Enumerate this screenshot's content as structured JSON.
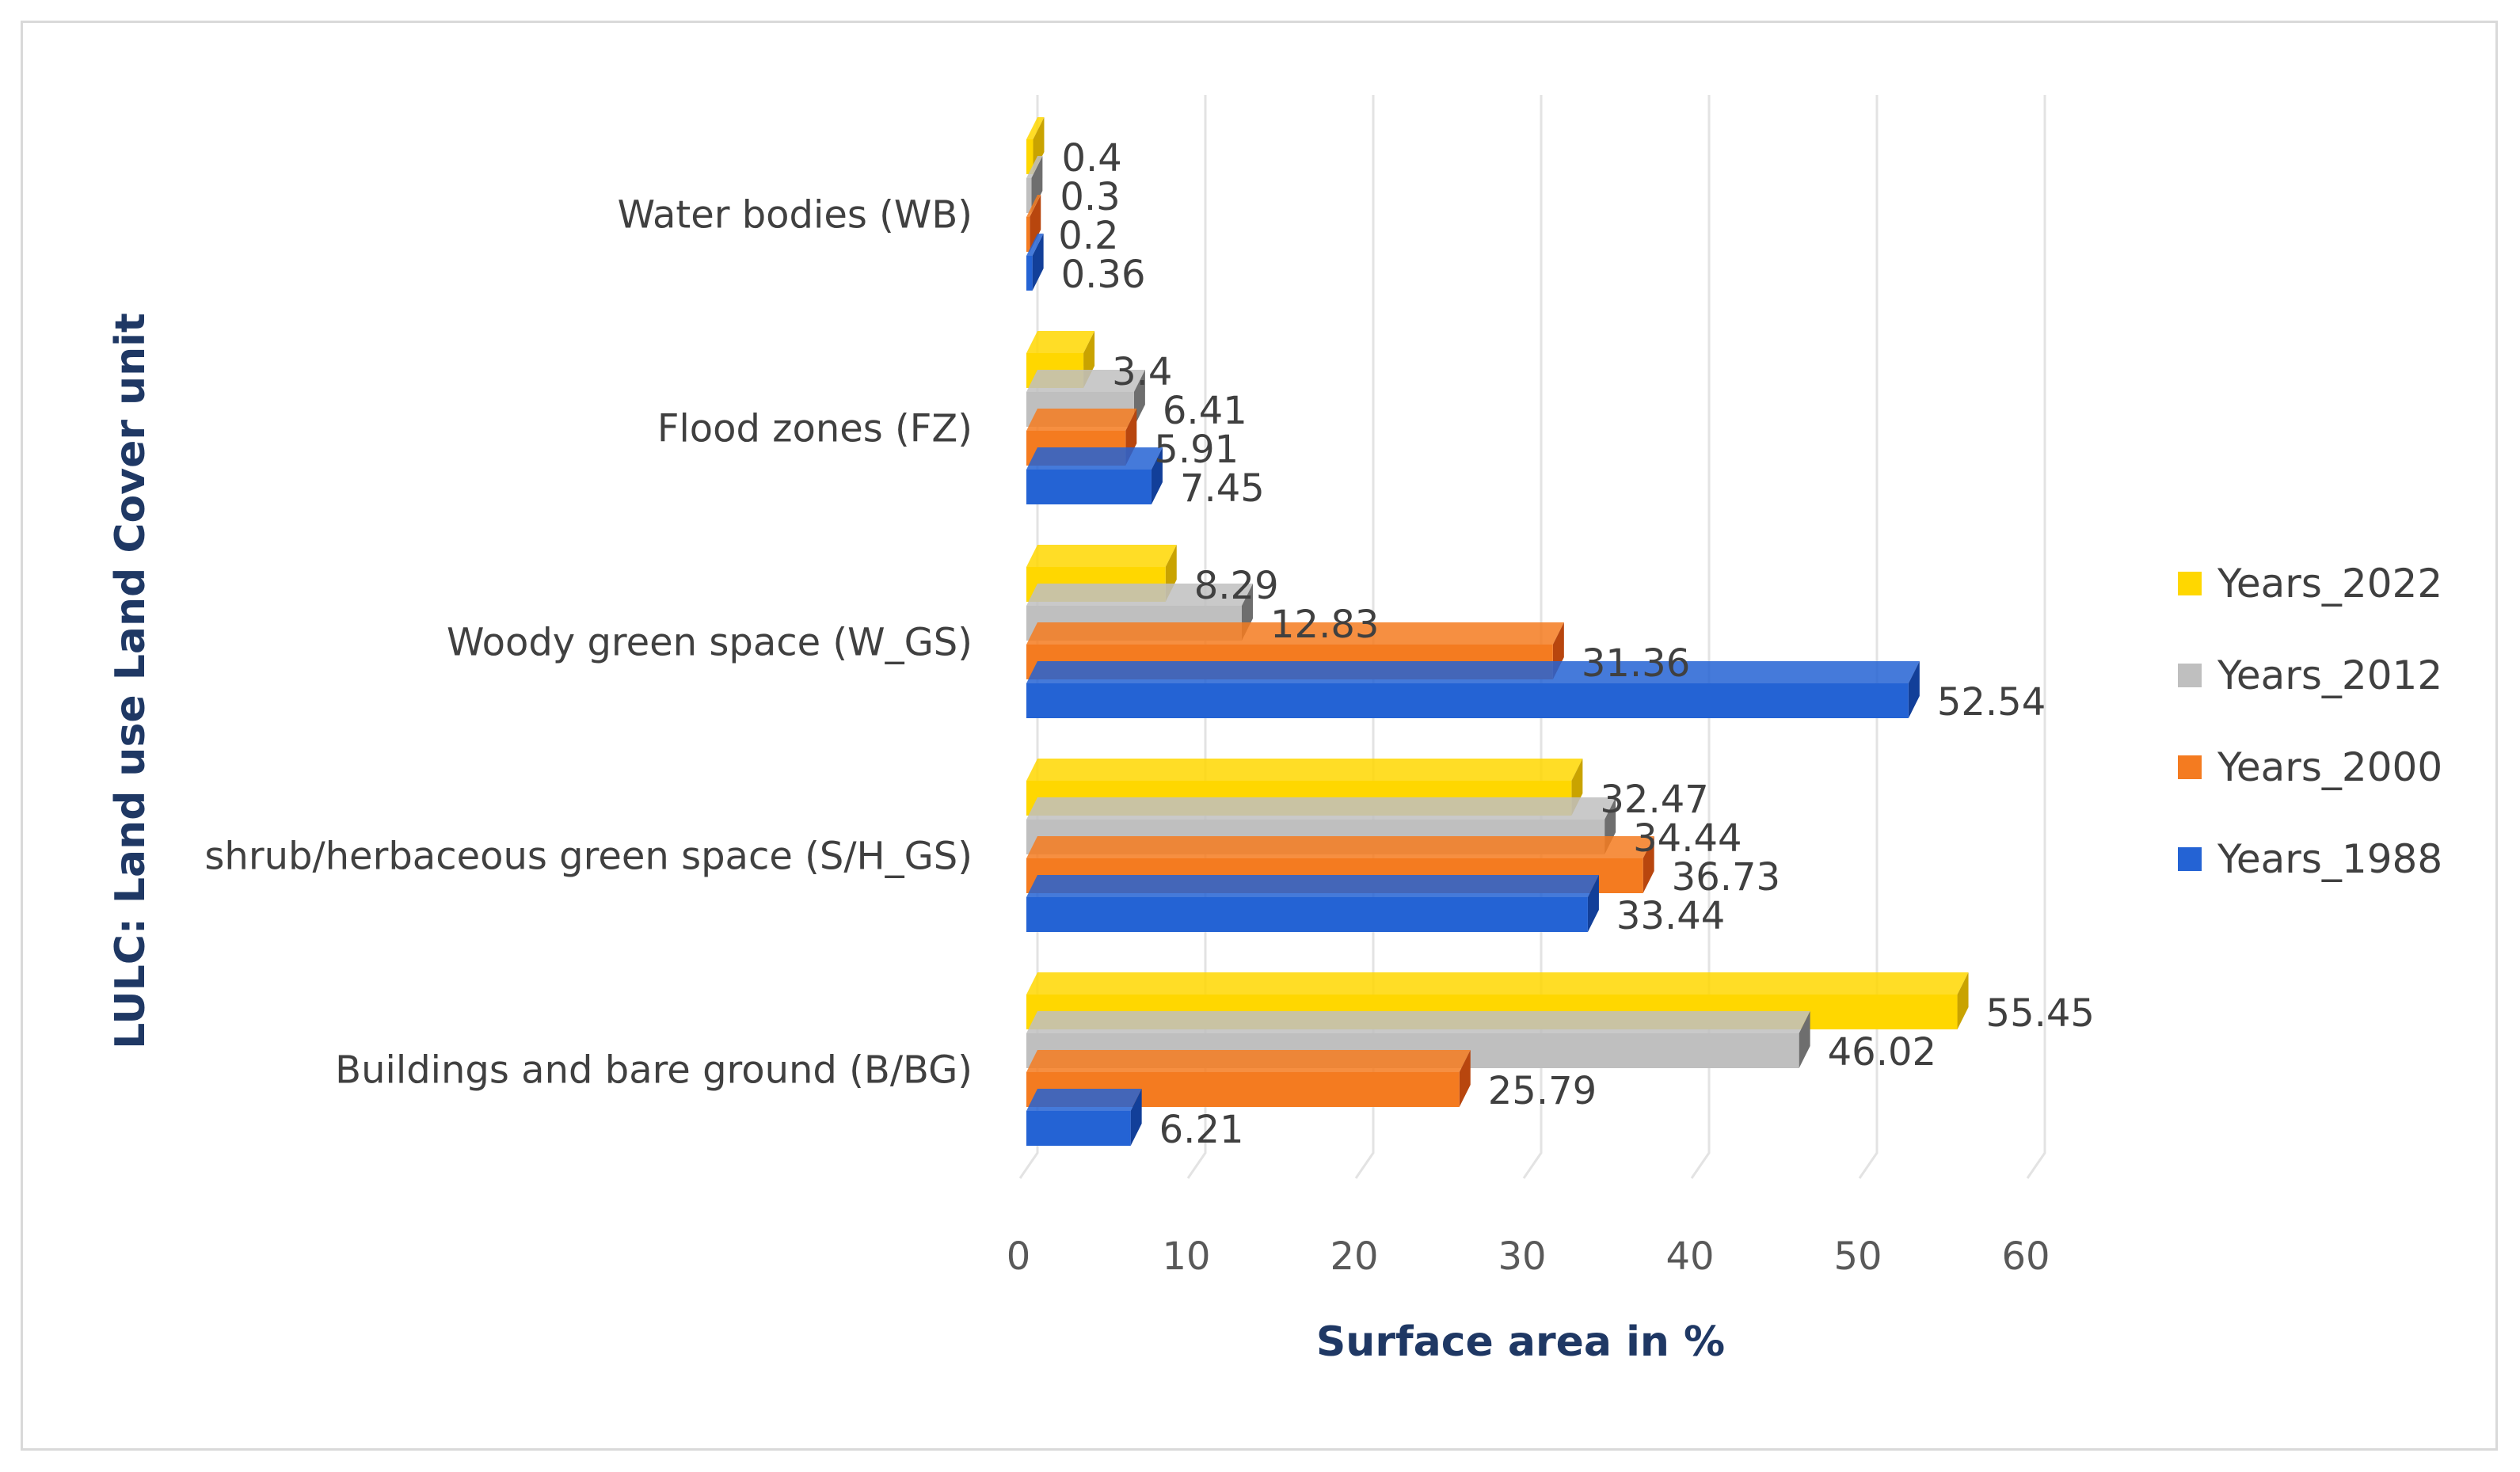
{
  "chart_data": {
    "type": "bar",
    "orientation": "horizontal",
    "style": "3d-clustered",
    "title": "",
    "xlabel": "Surface area in %",
    "ylabel": "LULC: Land use Land Cover unit",
    "xlim": [
      0,
      60
    ],
    "x_ticks": [
      "0",
      "10",
      "20",
      "30",
      "40",
      "50",
      "60"
    ],
    "grid": true,
    "legend_position": "right",
    "categories": [
      "Water bodies (WB)",
      "Flood zones (FZ)",
      "Woody green space (W_GS)",
      "shrub/herbaceous green space (S/H_GS)",
      "Buildings and bare ground (B/BG)"
    ],
    "series": [
      {
        "name": "Years_2022",
        "color": "#ffd700",
        "shade": "#c9a300",
        "values": [
          0.4,
          3.4,
          8.29,
          32.47,
          55.45
        ],
        "labels": [
          "0.4",
          "3.4",
          "8.29",
          "32.47",
          "55.45"
        ]
      },
      {
        "name": "Years_2012",
        "color": "#bfbfbf",
        "shade": "#6e6e6e",
        "values": [
          0.3,
          6.41,
          12.83,
          34.44,
          46.02
        ],
        "labels": [
          "0.3",
          "6.41",
          "12.83",
          "34.44",
          "46.02"
        ]
      },
      {
        "name": "Years_2000",
        "color": "#f47b20",
        "shade": "#b8460e",
        "values": [
          0.2,
          5.91,
          31.36,
          36.73,
          25.79
        ],
        "labels": [
          "0.2",
          "5.91",
          "31.36",
          "36.73",
          "25.79"
        ]
      },
      {
        "name": "Years_1988",
        "color": "#2463d4",
        "shade": "#123f99",
        "values": [
          0.36,
          7.45,
          52.54,
          33.44,
          6.21
        ],
        "labels": [
          "0.36",
          "7.45",
          "52.54",
          "33.44",
          "6.21"
        ]
      }
    ]
  }
}
